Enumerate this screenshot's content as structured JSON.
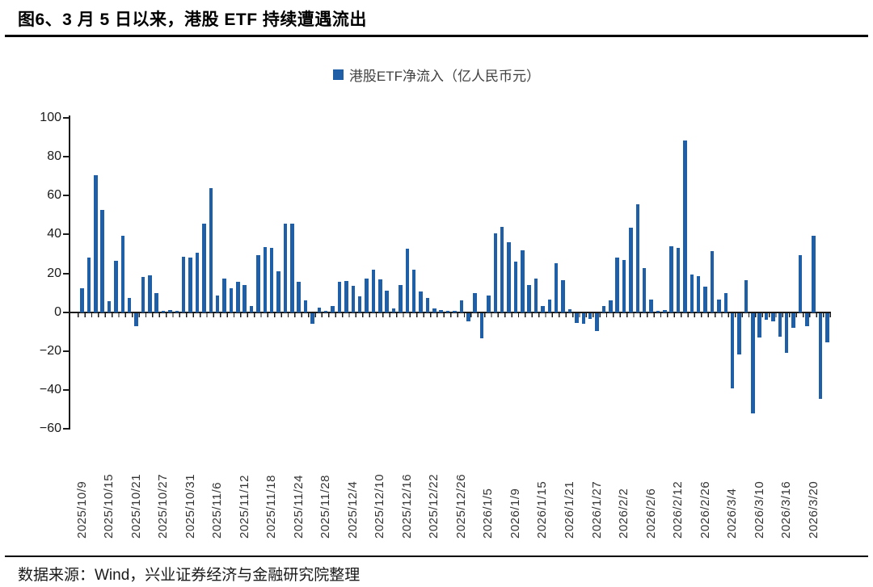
{
  "page": {
    "title": "图6、3 月 5 日以来，港股 ETF 持续遭遇流出",
    "source": "数据来源：Wind，兴业证券经济与金融研究院整理"
  },
  "chart_data": {
    "type": "bar",
    "legend": "港股ETF净流入（亿人民币元）",
    "legend_position": "top-center",
    "grid": false,
    "ylim": [
      -60,
      100
    ],
    "y_ticks": [
      100,
      80,
      60,
      40,
      20,
      0,
      -20,
      -40,
      -60
    ],
    "bar_color": "#1F5FA8",
    "axis_color": "#1a1a1a",
    "x_label_every_n_bars": 4,
    "x_tick_labels": [
      "2025/10/9",
      "2025/10/15",
      "2025/10/21",
      "2025/10/27",
      "2025/10/31",
      "2025/11/6",
      "2025/11/12",
      "2025/11/18",
      "2025/11/24",
      "2025/11/28",
      "2025/12/4",
      "2025/12/10",
      "2025/12/16",
      "2025/12/22",
      "2025/12/26",
      "2026/1/5",
      "2026/1/9",
      "2026/1/15",
      "2026/1/21",
      "2026/1/27",
      "2026/2/2",
      "2026/2/6",
      "2026/2/12",
      "2026/2/26",
      "2026/3/4",
      "2026/3/10",
      "2026/3/16",
      "2026/3/20"
    ],
    "values": [
      12.5,
      28,
      70.5,
      52.5,
      5.5,
      26.5,
      39.5,
      7.5,
      -7,
      18,
      19,
      10,
      0.5,
      1,
      0.5,
      28.5,
      28,
      30.5,
      45.5,
      64,
      8.5,
      17.5,
      12.5,
      15.5,
      14,
      3,
      29.5,
      33.5,
      33,
      21,
      45.5,
      45.5,
      15.5,
      6,
      -5.5,
      2.5,
      0.5,
      3,
      15.5,
      16,
      13.5,
      8,
      17.5,
      22,
      17,
      11,
      2,
      14,
      32.5,
      22,
      10.5,
      7.5,
      2,
      1,
      0.5,
      0.5,
      6,
      -4.5,
      10,
      -13,
      8.5,
      40.5,
      44,
      36,
      26,
      32,
      14,
      17.5,
      3,
      6.5,
      25,
      16.5,
      1.5,
      -5,
      -5.5,
      -3,
      -9.5,
      3,
      6,
      28,
      27,
      43.5,
      55.5,
      22.5,
      6.5,
      0.5,
      1,
      34,
      33,
      88.5,
      19.5,
      18.5,
      13,
      31.5,
      6.5,
      10,
      -39,
      -21.5,
      16.5,
      -51.5,
      -12.5,
      -3.5,
      -4.5,
      -12,
      -20.5,
      -7.5,
      29.5,
      -7,
      39.5,
      -44,
      -15
    ]
  }
}
